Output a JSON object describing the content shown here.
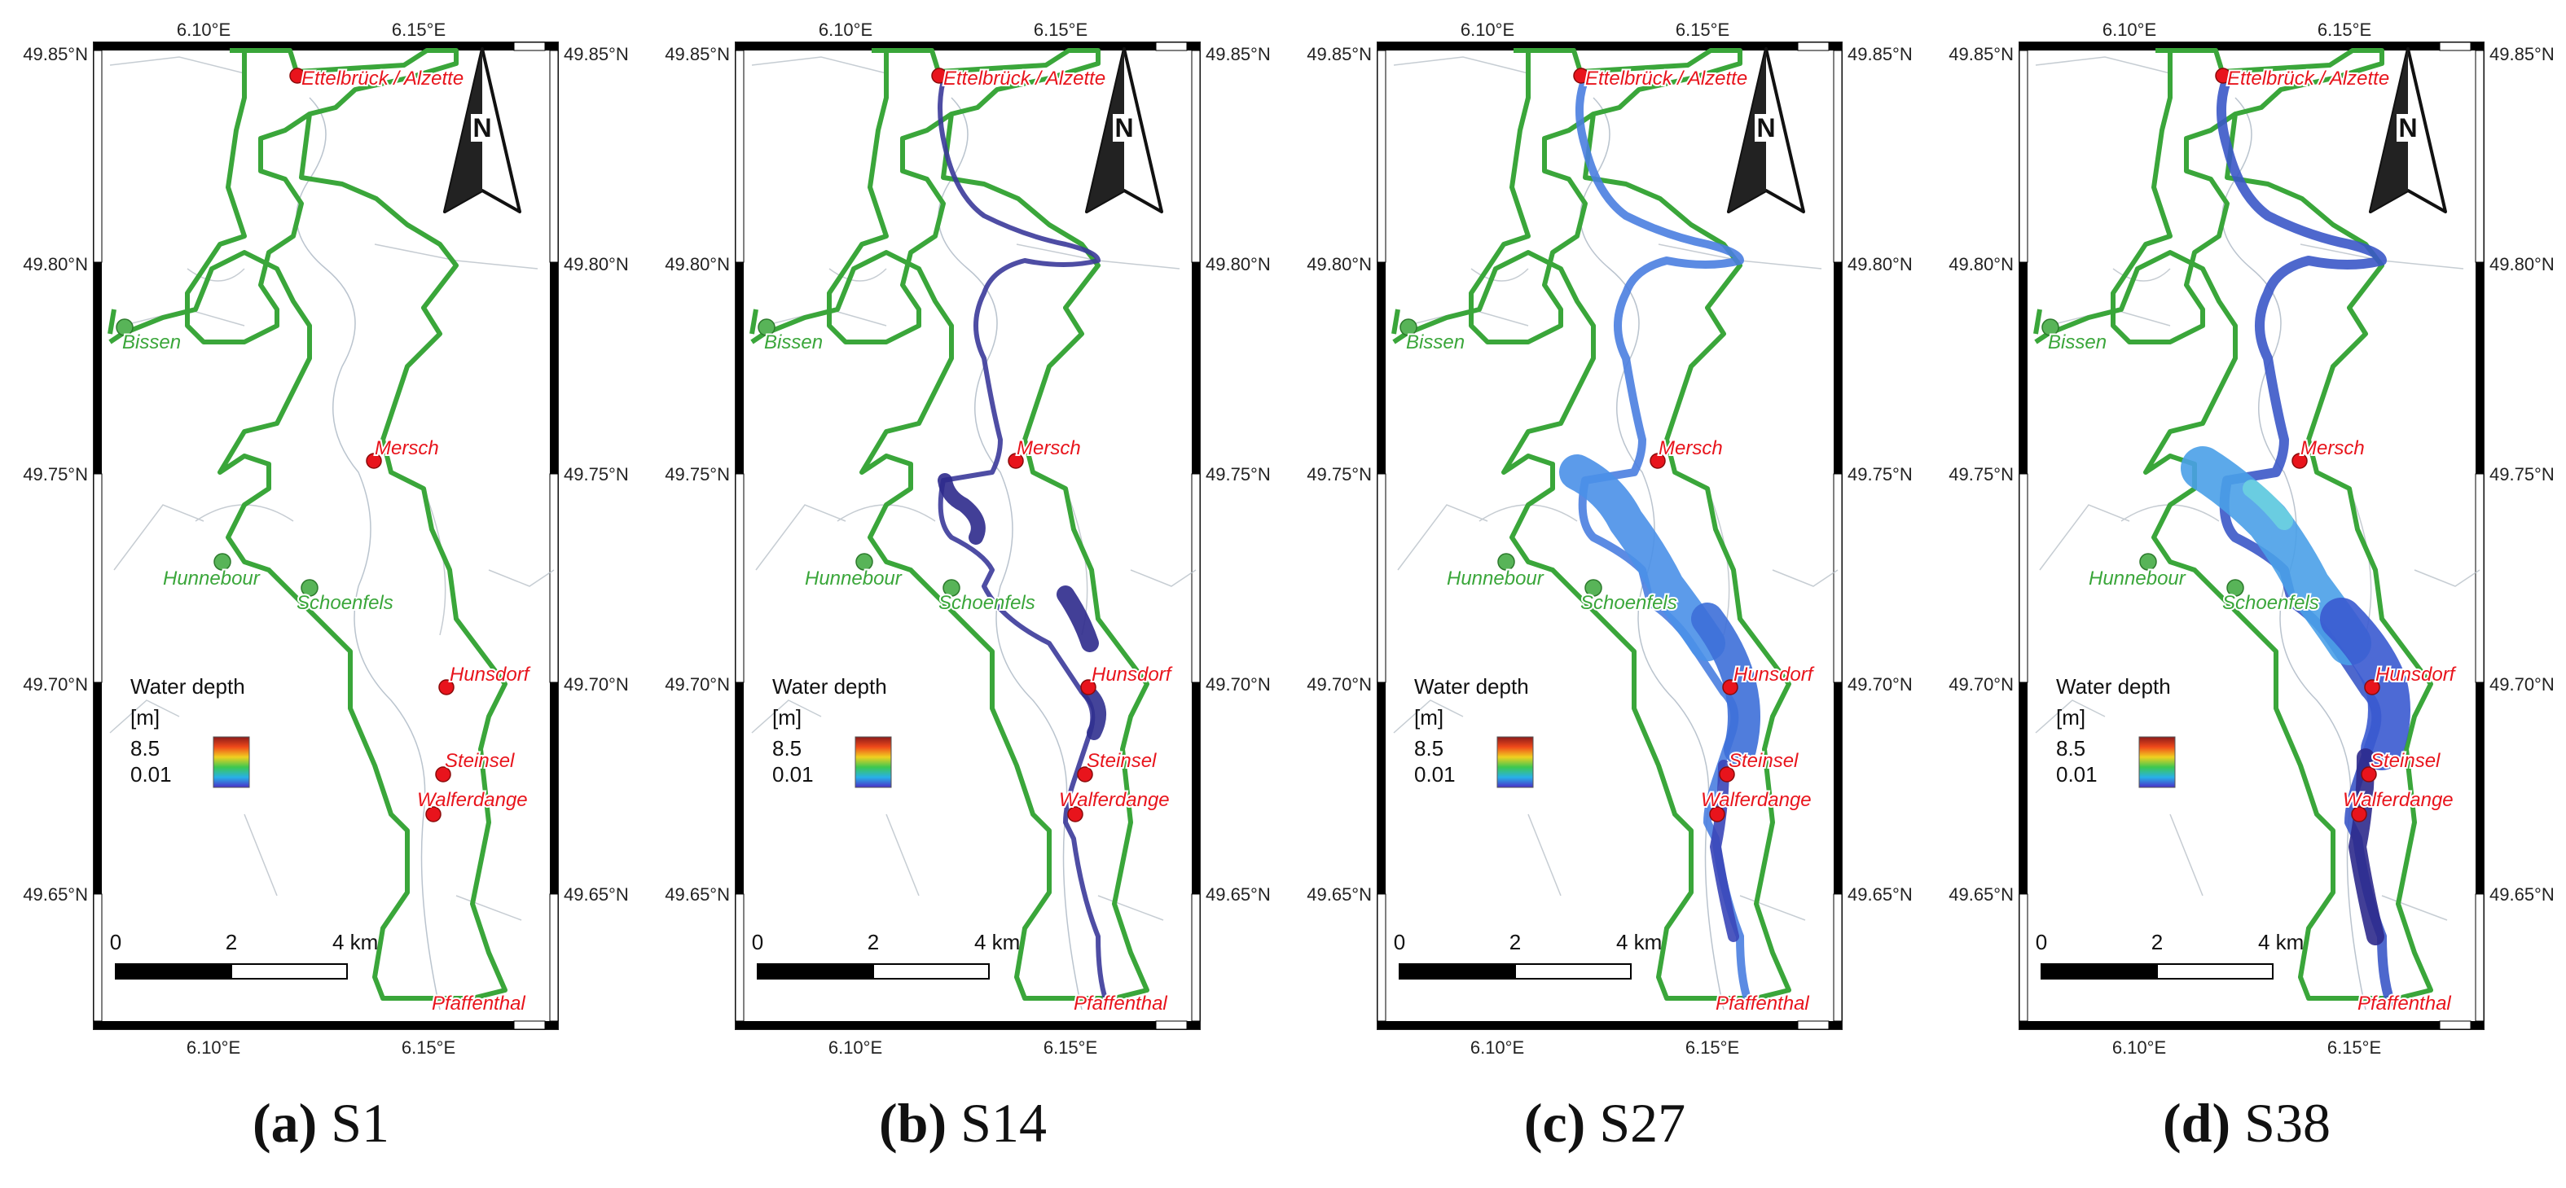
{
  "panels": [
    {
      "letter": "(a)",
      "title": "S1",
      "flood": 0
    },
    {
      "letter": "(b)",
      "title": "S14",
      "flood": 1
    },
    {
      "letter": "(c)",
      "title": "S27",
      "flood": 2
    },
    {
      "letter": "(d)",
      "title": "S38",
      "flood": 3
    }
  ],
  "grid": {
    "lon_top": [
      "6.10°E",
      "6.15°E"
    ],
    "lon_bottom": [
      "6.10°E",
      "6.15°E"
    ],
    "lat": [
      "49.85°N",
      "49.80°N",
      "49.75°N",
      "49.70°N",
      "49.65°N"
    ]
  },
  "places": {
    "red": [
      "Ettelbrück / Alzette",
      "Mersch",
      "Hunsdorf",
      "Steinsel",
      "Walferdange",
      "Pfaffenthal"
    ],
    "green": [
      "Bissen",
      "Hunnebour",
      "Schoenfels"
    ]
  },
  "north_label": "N",
  "legend": {
    "title": "Water depth",
    "unit": "[m]",
    "max": "8.5",
    "min": "0.01"
  },
  "scalebar": {
    "ticks": [
      "0",
      "2",
      "4 km"
    ]
  },
  "colors": {
    "boundary": "#3aa63a",
    "red_place": "#e8141c",
    "green_place": "#3aa63a",
    "water_deep": "#2a2a8a",
    "water_shallow": "#4aa0e8"
  }
}
